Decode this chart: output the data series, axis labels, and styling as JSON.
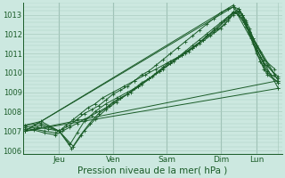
{
  "xlabel": "Pression niveau de la mer( hPa )",
  "bg_color": "#cce8e0",
  "grid_color": "#aaccbf",
  "line_color": "#1a5c28",
  "ylim": [
    1005.8,
    1013.6
  ],
  "xlim": [
    0,
    7.2
  ],
  "yticks": [
    1006,
    1007,
    1008,
    1009,
    1010,
    1011,
    1012,
    1013
  ],
  "xtick_positions": [
    1.0,
    2.5,
    4.0,
    5.5,
    6.5,
    7.1
  ],
  "xtick_labels": [
    "Jeu",
    "Ven",
    "Sam",
    "Dim",
    "Lun",
    ""
  ],
  "day_vlines": [
    1.0,
    2.5,
    4.0,
    5.5,
    6.5
  ],
  "series": [
    {
      "x": [
        0.05,
        0.3,
        0.6,
        0.9,
        1.1,
        1.3,
        1.5,
        1.7,
        1.9,
        2.1,
        2.3,
        2.5,
        2.7,
        2.9,
        3.1,
        3.3,
        3.5,
        3.7,
        3.9,
        4.1,
        4.3,
        4.5,
        4.7,
        4.9,
        5.1,
        5.3,
        5.5,
        5.7,
        5.85,
        6.0,
        6.1,
        6.2,
        6.3,
        6.4,
        6.5,
        6.6,
        6.7,
        6.8,
        6.9,
        7.1
      ],
      "y": [
        1007.0,
        1007.05,
        1006.9,
        1006.8,
        1007.0,
        1007.2,
        1007.4,
        1007.6,
        1007.8,
        1008.0,
        1008.2,
        1008.5,
        1008.7,
        1008.9,
        1009.2,
        1009.5,
        1009.7,
        1010.0,
        1010.3,
        1010.6,
        1010.8,
        1011.1,
        1011.4,
        1011.7,
        1012.0,
        1012.3,
        1012.6,
        1012.9,
        1013.1,
        1013.2,
        1013.0,
        1012.7,
        1012.3,
        1011.8,
        1011.3,
        1010.8,
        1010.4,
        1010.1,
        1009.9,
        1009.7
      ]
    },
    {
      "x": [
        0.05,
        0.3,
        0.6,
        0.9,
        1.1,
        1.3,
        1.5,
        1.7,
        1.9,
        2.1,
        2.3,
        2.5,
        2.7,
        2.9,
        3.1,
        3.3,
        3.5,
        3.7,
        3.9,
        4.1,
        4.3,
        4.5,
        4.7,
        4.9,
        5.1,
        5.3,
        5.5,
        5.7,
        5.85,
        6.0,
        6.1,
        6.2,
        6.3,
        6.4,
        6.5,
        6.6,
        6.7,
        6.8,
        7.1
      ],
      "y": [
        1007.0,
        1007.1,
        1007.0,
        1006.9,
        1007.1,
        1007.3,
        1007.6,
        1007.9,
        1008.1,
        1008.3,
        1008.6,
        1008.9,
        1009.1,
        1009.3,
        1009.6,
        1009.9,
        1010.1,
        1010.4,
        1010.7,
        1011.0,
        1011.3,
        1011.6,
        1011.9,
        1012.2,
        1012.5,
        1012.8,
        1013.1,
        1013.3,
        1013.4,
        1013.3,
        1013.0,
        1012.6,
        1012.1,
        1011.6,
        1011.1,
        1010.6,
        1010.2,
        1009.9,
        1009.5
      ]
    },
    {
      "x": [
        0.05,
        0.4,
        0.7,
        1.0,
        1.2,
        1.4,
        1.6,
        1.8,
        2.0,
        2.2,
        2.5,
        2.8,
        3.1,
        3.4,
        3.7,
        4.0,
        4.3,
        4.6,
        4.9,
        5.2,
        5.5,
        5.7,
        5.85,
        6.0,
        6.1,
        6.2,
        6.3,
        6.4,
        6.5,
        6.6,
        6.8,
        7.1
      ],
      "y": [
        1007.1,
        1007.2,
        1007.1,
        1007.0,
        1007.3,
        1007.6,
        1007.9,
        1008.2,
        1008.4,
        1008.7,
        1009.0,
        1009.3,
        1009.6,
        1009.9,
        1010.2,
        1010.5,
        1010.8,
        1011.1,
        1011.5,
        1011.9,
        1012.3,
        1012.7,
        1013.1,
        1013.3,
        1013.0,
        1012.5,
        1012.0,
        1011.5,
        1011.0,
        1010.6,
        1010.0,
        1009.5
      ]
    },
    {
      "x": [
        0.05,
        0.5,
        1.0,
        1.3,
        1.5,
        1.7,
        2.0,
        2.3,
        2.6,
        2.9,
        3.2,
        3.5,
        3.8,
        4.1,
        4.4,
        4.7,
        5.0,
        5.3,
        5.6,
        5.85,
        6.0,
        6.1,
        6.2,
        6.35,
        6.5,
        6.7,
        7.1
      ],
      "y": [
        1007.2,
        1007.3,
        1007.0,
        1006.3,
        1006.9,
        1007.5,
        1008.0,
        1008.4,
        1008.7,
        1009.0,
        1009.3,
        1009.7,
        1010.1,
        1010.5,
        1010.9,
        1011.3,
        1011.7,
        1012.1,
        1012.5,
        1013.0,
        1013.15,
        1012.9,
        1012.4,
        1011.8,
        1011.2,
        1010.5,
        1009.8
      ]
    },
    {
      "x": [
        0.05,
        0.5,
        1.0,
        1.35,
        1.6,
        1.85,
        2.1,
        2.4,
        2.7,
        3.0,
        3.3,
        3.6,
        3.9,
        4.2,
        4.5,
        4.8,
        5.1,
        5.4,
        5.7,
        5.85,
        6.0,
        6.15,
        6.3,
        6.5,
        6.7,
        7.0
      ],
      "y": [
        1007.3,
        1007.4,
        1007.0,
        1006.1,
        1006.8,
        1007.4,
        1007.9,
        1008.3,
        1008.7,
        1009.0,
        1009.4,
        1009.8,
        1010.2,
        1010.6,
        1011.0,
        1011.4,
        1011.9,
        1012.3,
        1012.8,
        1013.1,
        1013.0,
        1012.6,
        1012.1,
        1011.4,
        1010.7,
        1010.2
      ]
    },
    {
      "x": [
        0.05,
        0.5,
        1.0,
        1.4,
        1.7,
        2.0,
        2.3,
        2.6,
        2.9,
        3.2,
        3.5,
        3.8,
        4.1,
        4.4,
        4.7,
        5.0,
        5.3,
        5.6,
        5.85,
        6.0,
        6.2,
        6.4,
        6.6,
        6.8,
        7.0
      ],
      "y": [
        1007.3,
        1007.5,
        1007.0,
        1006.2,
        1007.0,
        1007.6,
        1008.1,
        1008.5,
        1008.9,
        1009.3,
        1009.7,
        1010.1,
        1010.5,
        1010.9,
        1011.3,
        1011.7,
        1012.2,
        1012.7,
        1013.15,
        1013.0,
        1012.5,
        1011.8,
        1011.1,
        1010.4,
        1009.9
      ]
    },
    {
      "x": [
        0.05,
        7.1
      ],
      "y": [
        1007.0,
        1009.2
      ]
    },
    {
      "x": [
        0.05,
        7.1
      ],
      "y": [
        1007.0,
        1009.6
      ]
    },
    {
      "x": [
        0.05,
        5.85,
        7.1
      ],
      "y": [
        1007.0,
        1013.4,
        1009.2
      ]
    },
    {
      "x": [
        0.05,
        5.85,
        7.1
      ],
      "y": [
        1007.0,
        1013.5,
        1009.6
      ]
    }
  ]
}
